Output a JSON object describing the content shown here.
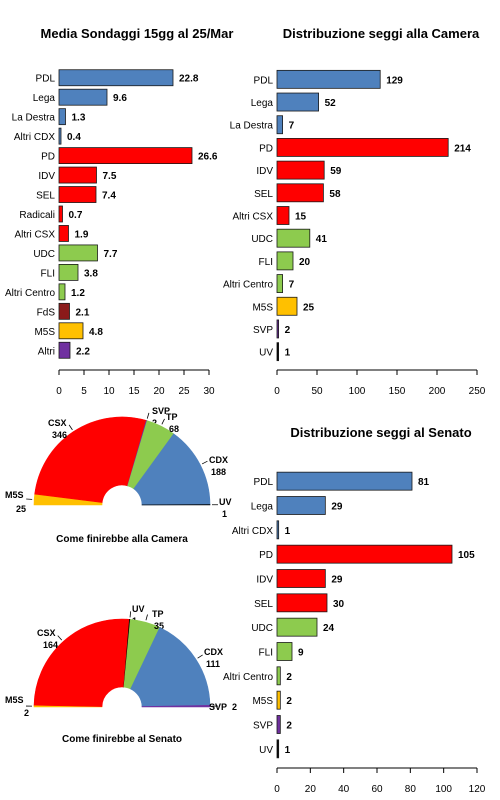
{
  "colors": {
    "cdx": "#4f81bd",
    "csx": "#ff0000",
    "centro": "#8dcb4e",
    "fds": "#8b1a1a",
    "m5s": "#ffc000",
    "altri": "#7030a0",
    "svp": "#7030a0",
    "uv": "#000000"
  },
  "chart_data": [
    {
      "type": "bar",
      "title": "Media Sondaggi 15gg al 25/Mar",
      "orientation": "horizontal",
      "categories": [
        "PDL",
        "Lega",
        "La Destra",
        "Altri CDX",
        "PD",
        "IDV",
        "SEL",
        "Radicali",
        "Altri CSX",
        "UDC",
        "FLI",
        "Altri Centro",
        "FdS",
        "M5S",
        "Altri"
      ],
      "values": [
        22.8,
        9.6,
        1.3,
        0.4,
        26.6,
        7.5,
        7.4,
        0.7,
        1.9,
        7.7,
        3.8,
        1.2,
        2.1,
        4.8,
        2.2
      ],
      "value_labels": [
        "22.8",
        "9.6",
        "1.3",
        "0.4",
        "26.6",
        "7.5",
        "7.4",
        "0.7",
        "1.9",
        "7.7",
        "3.8",
        "1.2",
        "2.1",
        "4.8",
        "2.2"
      ],
      "bar_colors": [
        "cdx",
        "cdx",
        "cdx",
        "cdx",
        "csx",
        "csx",
        "csx",
        "csx",
        "csx",
        "centro",
        "centro",
        "centro",
        "fds",
        "m5s",
        "altri"
      ],
      "xlim": [
        0,
        30
      ],
      "xticks": [
        0,
        5,
        10,
        15,
        20,
        25,
        30
      ],
      "xtick_labels": [
        "0",
        "5",
        "10",
        "15",
        "20",
        "25",
        "30"
      ]
    },
    {
      "type": "bar",
      "title": "Distribuzione seggi alla Camera",
      "orientation": "horizontal",
      "categories": [
        "PDL",
        "Lega",
        "La Destra",
        "PD",
        "IDV",
        "SEL",
        "Altri CSX",
        "UDC",
        "FLI",
        "Altri Centro",
        "M5S",
        "SVP",
        "UV"
      ],
      "values": [
        129,
        52,
        7,
        214,
        59,
        58,
        15,
        41,
        20,
        7,
        25,
        2,
        1
      ],
      "value_labels": [
        "129",
        "52",
        "7",
        "214",
        "59",
        "58",
        "15",
        "41",
        "20",
        "7",
        "25",
        "2",
        "1"
      ],
      "bar_colors": [
        "cdx",
        "cdx",
        "cdx",
        "csx",
        "csx",
        "csx",
        "csx",
        "centro",
        "centro",
        "centro",
        "m5s",
        "svp",
        "uv"
      ],
      "xlim": [
        0,
        250
      ],
      "xticks": [
        0,
        50,
        100,
        150,
        200,
        250
      ],
      "xtick_labels": [
        "0",
        "50",
        "100",
        "150",
        "200",
        "250"
      ]
    },
    {
      "type": "bar",
      "title": "Distribuzione seggi al Senato",
      "orientation": "horizontal",
      "categories": [
        "PDL",
        "Lega",
        "Altri CDX",
        "PD",
        "IDV",
        "SEL",
        "UDC",
        "FLI",
        "Altri Centro",
        "M5S",
        "SVP",
        "UV"
      ],
      "values": [
        81,
        29,
        1,
        105,
        29,
        30,
        24,
        9,
        2,
        2,
        2,
        1
      ],
      "value_labels": [
        "81",
        "29",
        "1",
        "105",
        "29",
        "30",
        "24",
        "9",
        "2",
        "2",
        "2",
        "1"
      ],
      "bar_colors": [
        "cdx",
        "cdx",
        "cdx",
        "csx",
        "csx",
        "csx",
        "centro",
        "centro",
        "centro",
        "m5s",
        "svp",
        "uv"
      ],
      "xlim": [
        0,
        120
      ],
      "xticks": [
        0,
        20,
        40,
        60,
        80,
        100,
        120
      ],
      "xtick_labels": [
        "0",
        "20",
        "40",
        "60",
        "80",
        "100",
        "120"
      ]
    },
    {
      "type": "pie",
      "subtype": "half-donut",
      "caption": "Come finirebbe alla Camera",
      "slices": [
        {
          "name": "M5S",
          "value": 25,
          "color": "m5s"
        },
        {
          "name": "CSX",
          "value": 346,
          "color": "csx"
        },
        {
          "name": "SVP",
          "value": 2,
          "color": "svp"
        },
        {
          "name": "TP",
          "value": 68,
          "color": "centro"
        },
        {
          "name": "CDX",
          "value": 188,
          "color": "cdx"
        },
        {
          "name": "UV",
          "value": 1,
          "color": "uv"
        }
      ]
    },
    {
      "type": "pie",
      "subtype": "half-donut",
      "caption": "Come finirebbe al Senato",
      "slices": [
        {
          "name": "M5S",
          "value": 2,
          "color": "m5s"
        },
        {
          "name": "CSX",
          "value": 164,
          "color": "csx"
        },
        {
          "name": "UV",
          "value": 1,
          "color": "uv"
        },
        {
          "name": "TP",
          "value": 35,
          "color": "centro"
        },
        {
          "name": "CDX",
          "value": 111,
          "color": "cdx"
        },
        {
          "name": "SVP",
          "value": 2,
          "color": "svp"
        }
      ]
    }
  ]
}
